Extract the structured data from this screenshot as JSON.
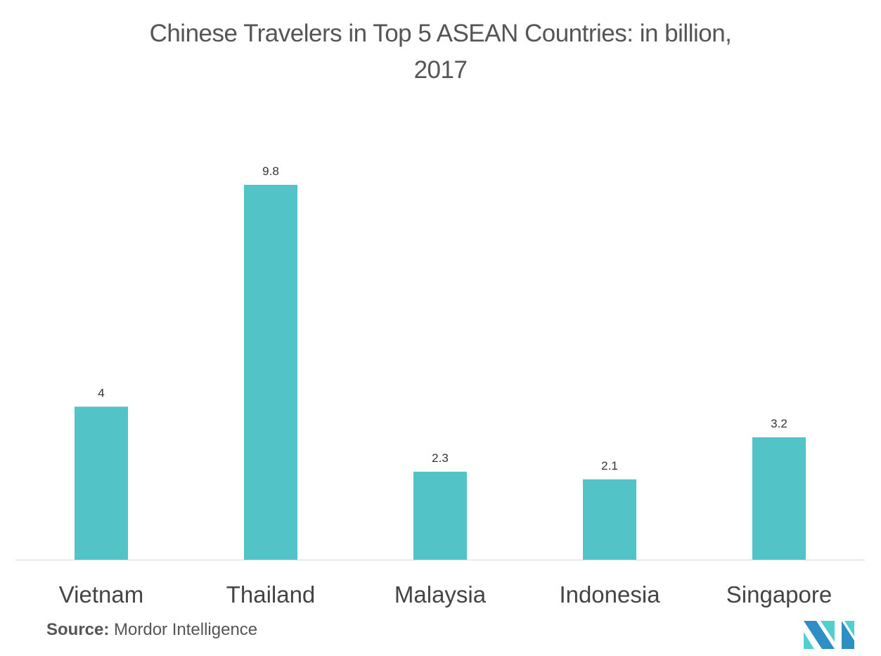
{
  "chart_data": {
    "type": "bar",
    "title": "Chinese Travelers in Top 5 ASEAN Countries: in billion, 2017",
    "title_lines": [
      "Chinese Travelers in Top 5 ASEAN Countries: in billion,",
      "2017"
    ],
    "categories": [
      "Vietnam",
      "Thailand",
      "Malaysia",
      "Indonesia",
      "Singapore"
    ],
    "values": [
      4,
      9.8,
      2.3,
      2.1,
      3.2
    ],
    "data_labels": [
      "4",
      "9.8",
      "2.3",
      "2.1",
      "3.2"
    ],
    "xlabel": "",
    "ylabel": "",
    "ylim": [
      0,
      10
    ],
    "grid": false,
    "bar_color": "#52c4c8"
  },
  "source": {
    "label": "Source:",
    "text": "Mordor Intelligence"
  },
  "logo": {
    "text": "MI",
    "colors": [
      "#2e8fc5",
      "#4fcfcf"
    ]
  }
}
